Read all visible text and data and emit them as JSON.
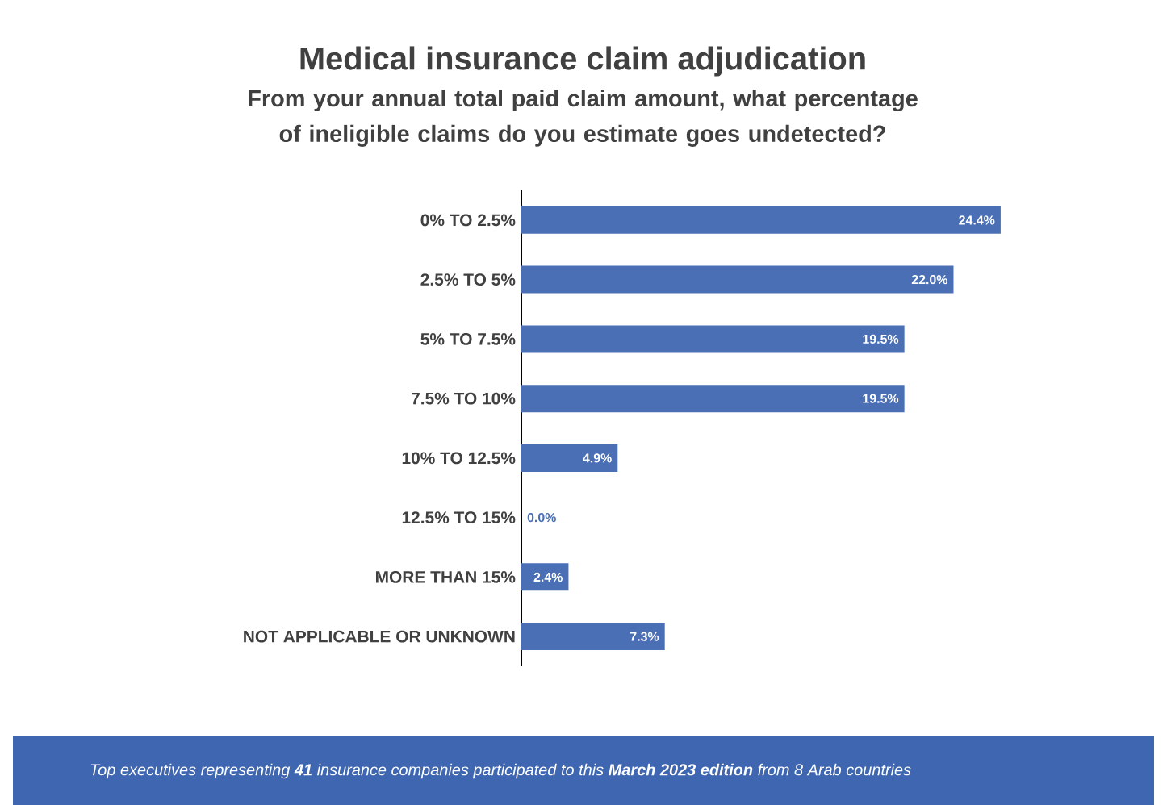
{
  "chart_data": {
    "type": "bar",
    "orientation": "horizontal",
    "title": "Medical insurance claim adjudication",
    "subtitle": "From your annual total paid claim amount, what percentage of ineligible claims do you estimate goes undetected?",
    "categories": [
      "0% TO 2.5%",
      "2.5% TO 5%",
      "5% TO 7.5%",
      "7.5% TO 10%",
      "10% TO 12.5%",
      "12.5% TO 15%",
      "MORE THAN 15%",
      "NOT APPLICABLE OR UNKNOWN"
    ],
    "values": [
      24.4,
      22.0,
      19.5,
      19.5,
      4.9,
      0.0,
      2.4,
      7.3
    ],
    "value_labels": [
      "24.4%",
      "22.0%",
      "19.5%",
      "19.5%",
      "4.9%",
      "0.0%",
      "2.4%",
      "7.3%"
    ],
    "color": "#4a6fb5",
    "annotations": [
      "Top executives representing **41** insurance companies participated to this **March 2023 edition** from 8 Arab countries"
    ]
  }
}
